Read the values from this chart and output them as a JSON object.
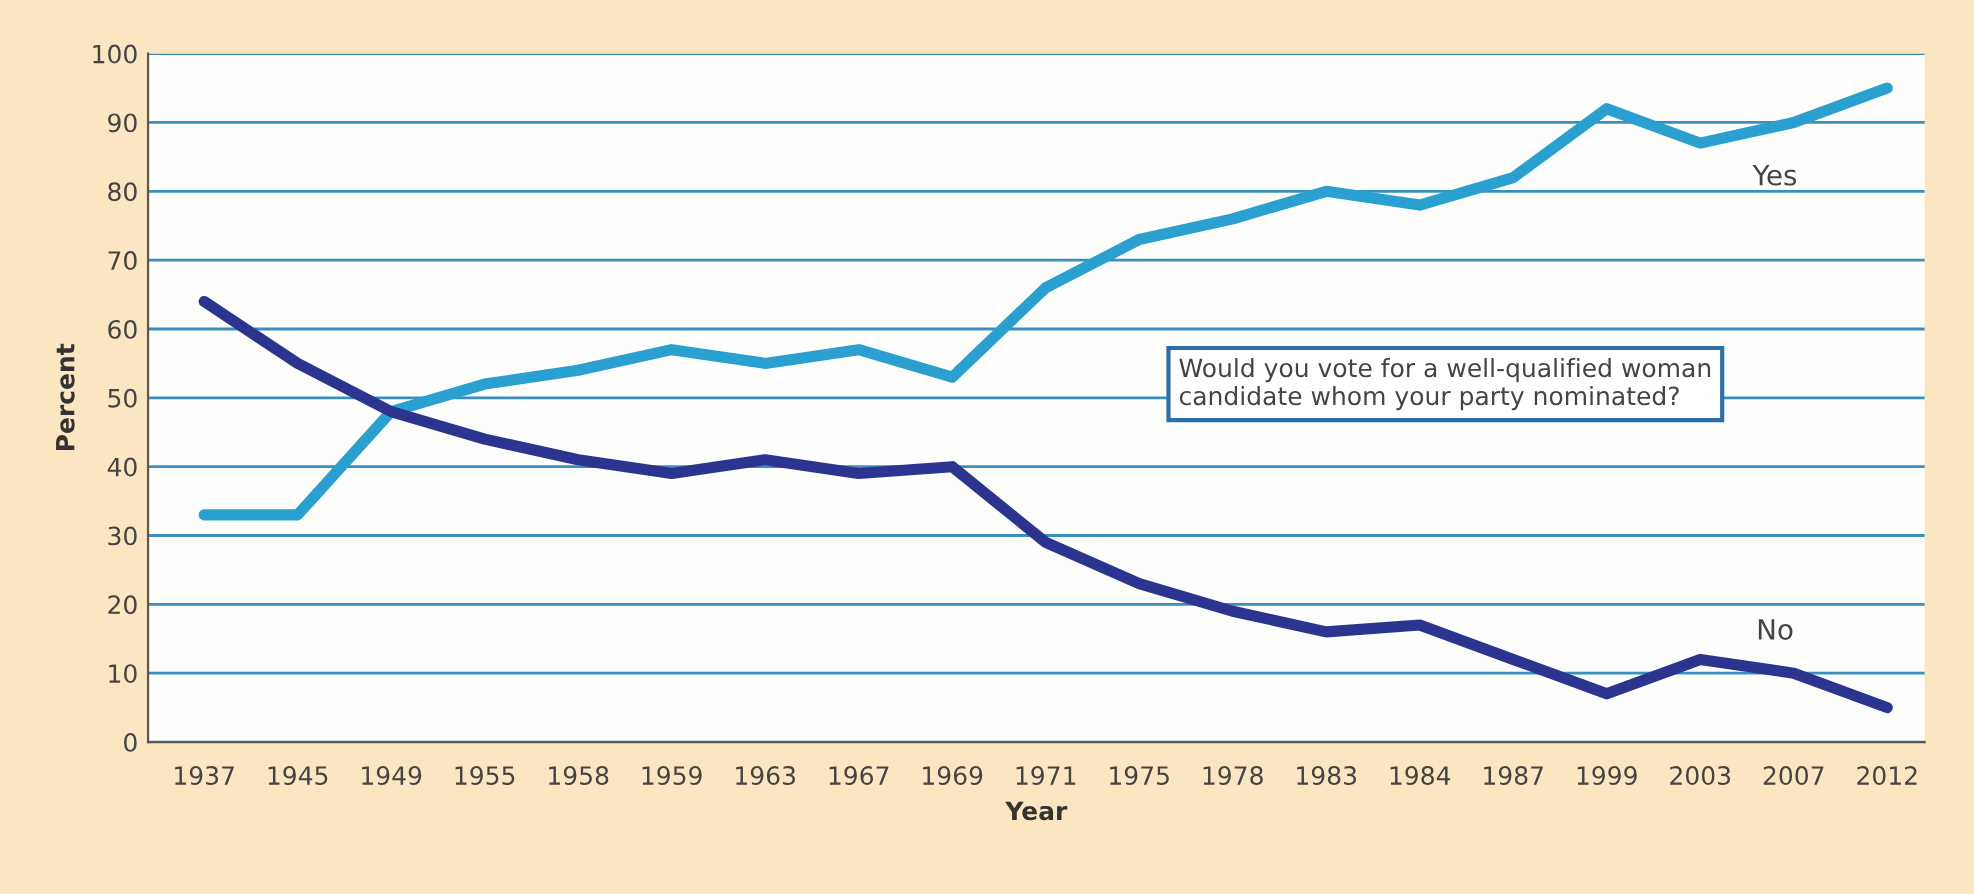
{
  "chart_data": {
    "type": "line",
    "xlabel": "Year",
    "ylabel": "Percent",
    "categories": [
      "1937",
      "1945",
      "1949",
      "1955",
      "1958",
      "1959",
      "1963",
      "1967",
      "1969",
      "1971",
      "1975",
      "1978",
      "1983",
      "1984",
      "1987",
      "1999",
      "2003",
      "2007",
      "2012"
    ],
    "series": [
      {
        "name": "Yes",
        "color": "#2aa0d0",
        "values": [
          33,
          33,
          48,
          52,
          54,
          57,
          55,
          57,
          53,
          66,
          73,
          76,
          80,
          78,
          82,
          92,
          87,
          90,
          95
        ]
      },
      {
        "name": "No",
        "color": "#2b3590",
        "values": [
          64,
          55,
          48,
          44,
          41,
          39,
          41,
          39,
          40,
          29,
          23,
          19,
          16,
          17,
          12,
          7,
          12,
          10,
          5
        ]
      }
    ],
    "ylim": [
      0,
      100
    ],
    "yticks": [
      0,
      10,
      20,
      30,
      40,
      50,
      60,
      70,
      80,
      90,
      100
    ],
    "grid": "y",
    "legend": false,
    "marker": "none",
    "line_style": "solid",
    "annotations": [
      "Would you vote for a well-qualified woman\ncandidate whom your party nominated?"
    ]
  }
}
